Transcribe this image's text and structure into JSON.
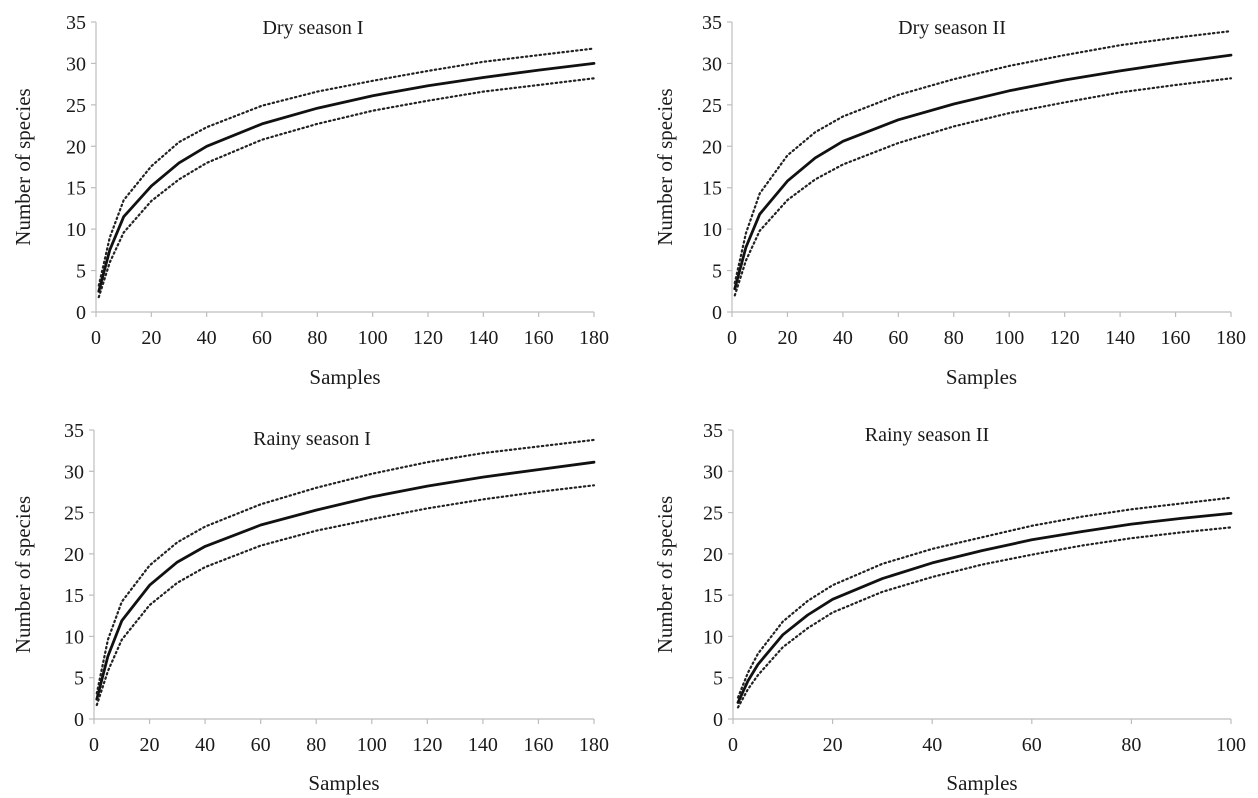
{
  "chart_data": [
    {
      "type": "line",
      "title": "Dry season I",
      "xlabel": "Samples",
      "ylabel": "Number of species",
      "xlim": [
        0,
        180
      ],
      "ylim": [
        0,
        35
      ],
      "xticks": [
        0,
        20,
        40,
        60,
        80,
        100,
        120,
        140,
        160,
        180
      ],
      "yticks": [
        0,
        5,
        10,
        15,
        20,
        25,
        30,
        35
      ],
      "grid": false,
      "legend": "none",
      "series": [
        {
          "role": "estimate",
          "style": "solid",
          "x": [
            1,
            5,
            10,
            20,
            30,
            40,
            60,
            80,
            100,
            120,
            140,
            160,
            180
          ],
          "y": [
            2.5,
            7.5,
            11.5,
            15.2,
            18.0,
            20.0,
            22.7,
            24.6,
            26.1,
            27.3,
            28.3,
            29.2,
            30.0
          ]
        },
        {
          "role": "upper bound",
          "style": "dotted",
          "x": [
            1,
            5,
            10,
            20,
            30,
            40,
            60,
            80,
            100,
            120,
            140,
            160,
            180
          ],
          "y": [
            3.2,
            9.0,
            13.5,
            17.6,
            20.5,
            22.3,
            24.9,
            26.6,
            27.9,
            29.1,
            30.2,
            31.0,
            31.8
          ]
        },
        {
          "role": "lower bound",
          "style": "dotted",
          "x": [
            1,
            5,
            10,
            20,
            30,
            40,
            60,
            80,
            100,
            120,
            140,
            160,
            180
          ],
          "y": [
            1.8,
            6.0,
            9.6,
            13.4,
            16.0,
            18.0,
            20.8,
            22.7,
            24.3,
            25.5,
            26.6,
            27.4,
            28.2
          ]
        }
      ]
    },
    {
      "type": "line",
      "title": "Dry season II",
      "xlabel": "Samples",
      "ylabel": "Number of species",
      "xlim": [
        0,
        180
      ],
      "ylim": [
        0,
        35
      ],
      "xticks": [
        0,
        20,
        40,
        60,
        80,
        100,
        120,
        140,
        160,
        180
      ],
      "yticks": [
        0,
        5,
        10,
        15,
        20,
        25,
        30,
        35
      ],
      "grid": false,
      "legend": "none",
      "series": [
        {
          "role": "estimate",
          "style": "solid",
          "x": [
            1,
            5,
            10,
            20,
            30,
            40,
            60,
            80,
            100,
            120,
            140,
            160,
            180
          ],
          "y": [
            2.8,
            7.8,
            11.8,
            15.8,
            18.6,
            20.6,
            23.2,
            25.1,
            26.7,
            28.0,
            29.1,
            30.1,
            31.0
          ]
        },
        {
          "role": "upper bound",
          "style": "dotted",
          "x": [
            1,
            5,
            10,
            20,
            30,
            40,
            60,
            80,
            100,
            120,
            140,
            160,
            180
          ],
          "y": [
            3.5,
            9.5,
            14.3,
            18.9,
            21.7,
            23.6,
            26.2,
            28.1,
            29.7,
            31.0,
            32.2,
            33.1,
            33.9
          ]
        },
        {
          "role": "lower bound",
          "style": "dotted",
          "x": [
            1,
            5,
            10,
            20,
            30,
            40,
            60,
            80,
            100,
            120,
            140,
            160,
            180
          ],
          "y": [
            2.0,
            6.2,
            9.8,
            13.5,
            16.0,
            17.8,
            20.4,
            22.4,
            24.0,
            25.3,
            26.5,
            27.4,
            28.2
          ]
        }
      ]
    },
    {
      "type": "line",
      "title": "Rainy season I",
      "xlabel": "Samples",
      "ylabel": "Number of species",
      "xlim": [
        0,
        180
      ],
      "ylim": [
        0,
        35
      ],
      "xticks": [
        0,
        20,
        40,
        60,
        80,
        100,
        120,
        140,
        160,
        180
      ],
      "yticks": [
        0,
        5,
        10,
        15,
        20,
        25,
        30,
        35
      ],
      "grid": false,
      "legend": "none",
      "series": [
        {
          "role": "estimate",
          "style": "solid",
          "x": [
            1,
            5,
            10,
            20,
            30,
            40,
            60,
            80,
            100,
            120,
            140,
            160,
            180
          ],
          "y": [
            2.4,
            7.6,
            11.9,
            16.2,
            19.0,
            20.9,
            23.5,
            25.3,
            26.9,
            28.2,
            29.3,
            30.2,
            31.1
          ]
        },
        {
          "role": "upper bound",
          "style": "dotted",
          "x": [
            1,
            5,
            10,
            20,
            30,
            40,
            60,
            80,
            100,
            120,
            140,
            160,
            180
          ],
          "y": [
            3.1,
            9.6,
            14.2,
            18.6,
            21.4,
            23.3,
            26.0,
            28.0,
            29.7,
            31.1,
            32.2,
            33.0,
            33.8
          ]
        },
        {
          "role": "lower bound",
          "style": "dotted",
          "x": [
            1,
            5,
            10,
            20,
            30,
            40,
            60,
            80,
            100,
            120,
            140,
            160,
            180
          ],
          "y": [
            1.7,
            5.8,
            9.6,
            13.8,
            16.5,
            18.4,
            21.0,
            22.8,
            24.2,
            25.5,
            26.6,
            27.5,
            28.3
          ]
        }
      ]
    },
    {
      "type": "line",
      "title": "Rainy season II",
      "xlabel": "Samples",
      "ylabel": "Number of species",
      "xlim": [
        0,
        100
      ],
      "ylim": [
        0,
        35
      ],
      "xticks": [
        0,
        20,
        40,
        60,
        80,
        100
      ],
      "yticks": [
        0,
        5,
        10,
        15,
        20,
        25,
        30,
        35
      ],
      "grid": false,
      "legend": "none",
      "series": [
        {
          "role": "estimate",
          "style": "solid",
          "x": [
            1,
            3,
            5,
            10,
            15,
            20,
            30,
            40,
            50,
            60,
            70,
            80,
            90,
            100
          ],
          "y": [
            2.0,
            4.6,
            6.6,
            10.2,
            12.6,
            14.5,
            17.0,
            18.9,
            20.4,
            21.7,
            22.7,
            23.6,
            24.3,
            24.9
          ]
        },
        {
          "role": "upper bound",
          "style": "dotted",
          "x": [
            1,
            3,
            5,
            10,
            15,
            20,
            30,
            40,
            50,
            60,
            70,
            80,
            90,
            100
          ],
          "y": [
            2.6,
            5.6,
            7.9,
            11.8,
            14.3,
            16.2,
            18.8,
            20.6,
            22.0,
            23.4,
            24.5,
            25.4,
            26.1,
            26.8
          ]
        },
        {
          "role": "lower bound",
          "style": "dotted",
          "x": [
            1,
            3,
            5,
            10,
            15,
            20,
            30,
            40,
            50,
            60,
            70,
            80,
            90,
            100
          ],
          "y": [
            1.4,
            3.6,
            5.3,
            8.7,
            11.0,
            12.9,
            15.4,
            17.2,
            18.7,
            19.9,
            21.0,
            21.9,
            22.6,
            23.2
          ]
        }
      ]
    }
  ]
}
